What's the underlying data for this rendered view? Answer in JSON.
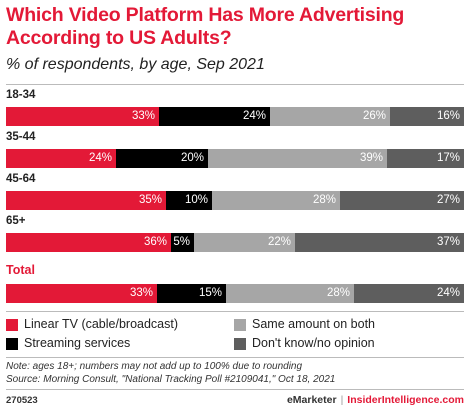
{
  "title": "Which Video Platform Has More Advertising According to US Adults?",
  "subtitle": "% of respondents, by age, Sep 2021",
  "colors": {
    "linear_tv": "#e31937",
    "streaming": "#000000",
    "same": "#a6a6a6",
    "dont_know": "#5e5e5e",
    "accent": "#e31937"
  },
  "chart_data": {
    "type": "bar",
    "orientation": "horizontal-stacked-100",
    "categories": [
      "18-34",
      "35-44",
      "45-64",
      "65+",
      "Total"
    ],
    "series": [
      {
        "name": "Linear TV (cable/broadcast)",
        "values": [
          33,
          24,
          35,
          36,
          33
        ]
      },
      {
        "name": "Streaming services",
        "values": [
          24,
          20,
          10,
          5,
          15
        ]
      },
      {
        "name": "Same amount on both",
        "values": [
          26,
          39,
          28,
          22,
          28
        ]
      },
      {
        "name": "Don't know/no opinion",
        "values": [
          16,
          17,
          27,
          37,
          24
        ]
      }
    ],
    "value_suffix": "%",
    "legend_position": "bottom",
    "grid": false
  },
  "legend": [
    {
      "label": "Linear TV (cable/broadcast)",
      "color": "#e31937"
    },
    {
      "label": "Streaming services",
      "color": "#000000"
    },
    {
      "label": "Same amount on both",
      "color": "#a6a6a6"
    },
    {
      "label": "Don't know/no opinion",
      "color": "#5e5e5e"
    }
  ],
  "note": "Note: ages 18+; numbers may not add up to 100% due to rounding",
  "source": "Source: Morning Consult, \"National Tracking Poll #2109041,\" Oct 18, 2021",
  "footer": {
    "chart_id": "270523",
    "brand1": "eMarketer",
    "separator": "|",
    "brand2": "InsiderIntelligence.com"
  }
}
